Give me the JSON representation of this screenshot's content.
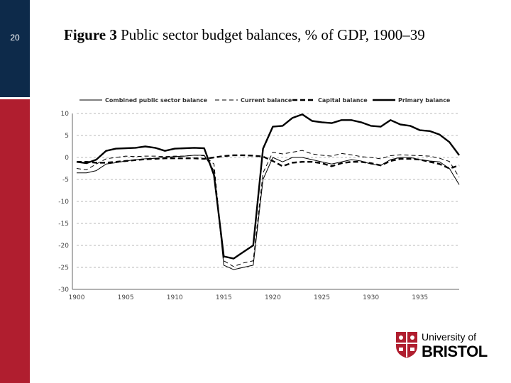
{
  "slide": {
    "page_number": "20"
  },
  "figure": {
    "label": "Figure 3",
    "caption": "Public sector budget balances, % of GDP, 1900–39"
  },
  "logo": {
    "line1": "University of",
    "line2": "BRISTOL"
  },
  "colors": {
    "navy": "#0d2a4a",
    "red": "#b01e2f",
    "logo_red": "#b01e2f"
  },
  "chart_data": {
    "type": "line",
    "legend_position": "top",
    "grid": "horizontal-dashed",
    "xlim": [
      1900,
      1939
    ],
    "ylim": [
      -30,
      10
    ],
    "xticks": [
      1900,
      1905,
      1910,
      1915,
      1920,
      1925,
      1930,
      1935
    ],
    "yticks": [
      10,
      5,
      0,
      -5,
      -10,
      -15,
      -20,
      -25,
      -30
    ],
    "x": [
      1900,
      1901,
      1902,
      1903,
      1904,
      1905,
      1906,
      1907,
      1908,
      1909,
      1910,
      1911,
      1912,
      1913,
      1914,
      1915,
      1916,
      1917,
      1918,
      1919,
      1920,
      1921,
      1922,
      1923,
      1924,
      1925,
      1926,
      1927,
      1928,
      1929,
      1930,
      1931,
      1932,
      1933,
      1934,
      1935,
      1936,
      1937,
      1938,
      1939
    ],
    "series": [
      {
        "name": "Combined public sector balance",
        "style": "thin-solid",
        "values": [
          -3.5,
          -3.5,
          -3,
          -1.5,
          -1.2,
          -0.8,
          -0.5,
          -0.3,
          -0.2,
          0,
          0.2,
          0.3,
          0.5,
          0.5,
          -3,
          -24.5,
          -25.5,
          -25,
          -24.5,
          -5,
          0,
          -1,
          0,
          0,
          -0.5,
          -1,
          -1.5,
          -1,
          -0.5,
          -0.8,
          -1.5,
          -1.8,
          -0.5,
          0,
          0,
          -0.5,
          -0.8,
          -1,
          -2.5,
          -6.2
        ]
      },
      {
        "name": "Current balance",
        "style": "thin-dash",
        "values": [
          -2.5,
          -2.8,
          -1.5,
          -0.3,
          0,
          0.3,
          0.2,
          0.3,
          0.3,
          0.2,
          0.3,
          0.3,
          0.5,
          0.4,
          -1.5,
          -23.5,
          -24.8,
          -24,
          -23.5,
          -3.5,
          1.2,
          0.8,
          1.2,
          1.6,
          0.8,
          0.5,
          0.3,
          0.9,
          0.6,
          0.2,
          0,
          -0.3,
          0.4,
          0.6,
          0.5,
          0.4,
          0.3,
          -0.2,
          -0.9,
          -4.5
        ]
      },
      {
        "name": "Capital balance",
        "style": "thick-dash",
        "values": [
          -1,
          -1,
          -1.2,
          -1.2,
          -1,
          -0.8,
          -0.6,
          -0.4,
          -0.3,
          -0.2,
          -0.2,
          -0.2,
          -0.2,
          -0.3,
          0,
          0.3,
          0.5,
          0.5,
          0.4,
          0.2,
          -0.8,
          -2,
          -1.2,
          -1,
          -1,
          -1.3,
          -2,
          -1.3,
          -1,
          -1,
          -1.3,
          -1.8,
          -0.8,
          -0.3,
          -0.3,
          -0.5,
          -1,
          -1.5,
          -2.5,
          -1.8
        ]
      },
      {
        "name": "Primary balance",
        "style": "thick-solid",
        "values": [
          -1,
          -1.3,
          -0.5,
          1.5,
          2,
          2.1,
          2.2,
          2.5,
          2.2,
          1.5,
          2,
          2.1,
          2.2,
          2.1,
          -4,
          -22.5,
          -23,
          -21.5,
          -20,
          2,
          7,
          7.2,
          9,
          9.8,
          8.3,
          8,
          7.8,
          8.5,
          8.5,
          8,
          7.2,
          7,
          8.5,
          7.5,
          7.2,
          6.2,
          6,
          5.2,
          3.5,
          0.5
        ]
      }
    ]
  }
}
